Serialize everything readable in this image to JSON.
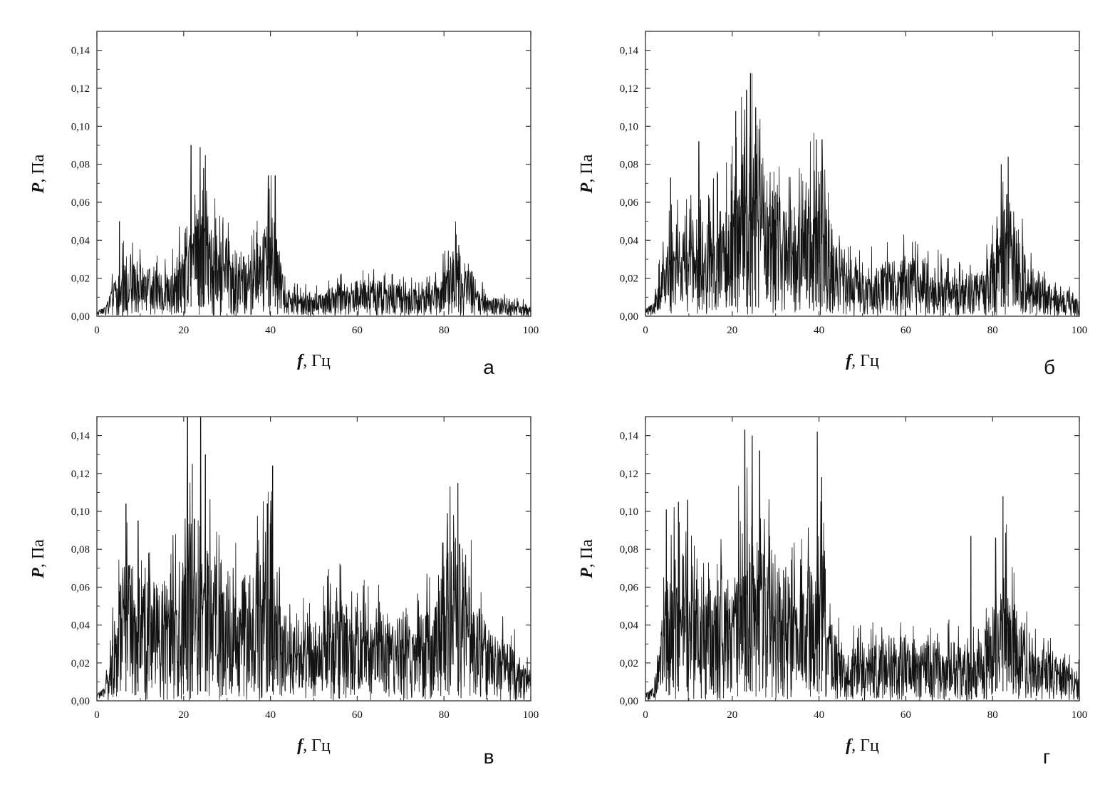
{
  "chart_data": [
    {
      "type": "line",
      "panel_label": "а",
      "xlabel": {
        "symbol": "f",
        "unit": ", Гц"
      },
      "ylabel": {
        "symbol": "P",
        "unit": ", Па"
      },
      "xlim": [
        0,
        100
      ],
      "ylim": [
        0,
        0.15
      ],
      "xticks": [
        "0",
        "20",
        "40",
        "60",
        "80",
        "100"
      ],
      "yticks": [
        "0,00",
        "0,02",
        "0,04",
        "0,06",
        "0,08",
        "0,10",
        "0,12",
        "0,14"
      ],
      "grid": false,
      "colors": {
        "trace": "#111111",
        "trace_light": "#8a8a8a"
      },
      "envelope": {
        "x": [
          0,
          2,
          4,
          6,
          8,
          10,
          12,
          15,
          18,
          20,
          21,
          22,
          23,
          24,
          25,
          26,
          28,
          30,
          33,
          36,
          38,
          40,
          41,
          42,
          43,
          45,
          50,
          55,
          60,
          65,
          70,
          75,
          78,
          80,
          82,
          83,
          84,
          86,
          88,
          90,
          95,
          100
        ],
        "y": [
          0.002,
          0.004,
          0.012,
          0.018,
          0.02,
          0.018,
          0.016,
          0.016,
          0.018,
          0.025,
          0.035,
          0.04,
          0.045,
          0.045,
          0.04,
          0.032,
          0.028,
          0.026,
          0.022,
          0.022,
          0.028,
          0.035,
          0.035,
          0.025,
          0.012,
          0.008,
          0.008,
          0.01,
          0.012,
          0.012,
          0.01,
          0.009,
          0.012,
          0.016,
          0.022,
          0.024,
          0.022,
          0.016,
          0.01,
          0.007,
          0.005,
          0.004
        ]
      },
      "peaks": [
        {
          "x": 5.2,
          "y": 0.05
        },
        {
          "x": 21.7,
          "y": 0.09
        },
        {
          "x": 23.8,
          "y": 0.089
        },
        {
          "x": 24.6,
          "y": 0.078
        },
        {
          "x": 39.5,
          "y": 0.074
        },
        {
          "x": 41.1,
          "y": 0.074
        },
        {
          "x": 82.8,
          "y": 0.043
        }
      ]
    },
    {
      "type": "line",
      "panel_label": "б",
      "xlabel": {
        "symbol": "f",
        "unit": ", Гц"
      },
      "ylabel": {
        "symbol": "P",
        "unit": ", Па"
      },
      "xlim": [
        0,
        100
      ],
      "ylim": [
        0,
        0.15
      ],
      "xticks": [
        "0",
        "20",
        "40",
        "60",
        "80",
        "100"
      ],
      "yticks": [
        "0,00",
        "0,02",
        "0,04",
        "0,06",
        "0,08",
        "0,10",
        "0,12",
        "0,14"
      ],
      "grid": false,
      "colors": {
        "trace": "#111111",
        "trace_light": "#8a8a8a"
      },
      "envelope": {
        "x": [
          0,
          2,
          4,
          6,
          10,
          14,
          18,
          20,
          22,
          24,
          26,
          28,
          32,
          36,
          38,
          40,
          42,
          45,
          50,
          55,
          60,
          65,
          70,
          75,
          78,
          80,
          82,
          84,
          86,
          88,
          90,
          95,
          100
        ],
        "y": [
          0.003,
          0.006,
          0.02,
          0.028,
          0.03,
          0.032,
          0.038,
          0.046,
          0.055,
          0.062,
          0.055,
          0.045,
          0.038,
          0.038,
          0.045,
          0.048,
          0.035,
          0.02,
          0.016,
          0.018,
          0.02,
          0.018,
          0.014,
          0.013,
          0.016,
          0.025,
          0.035,
          0.038,
          0.03,
          0.018,
          0.012,
          0.009,
          0.007
        ]
      },
      "peaks": [
        {
          "x": 5.8,
          "y": 0.073
        },
        {
          "x": 12.3,
          "y": 0.092
        },
        {
          "x": 20.8,
          "y": 0.108
        },
        {
          "x": 23.3,
          "y": 0.119
        },
        {
          "x": 24.2,
          "y": 0.128
        },
        {
          "x": 25.4,
          "y": 0.11
        },
        {
          "x": 39.4,
          "y": 0.093
        },
        {
          "x": 40.7,
          "y": 0.093
        },
        {
          "x": 82.0,
          "y": 0.08
        },
        {
          "x": 83.6,
          "y": 0.084
        }
      ]
    },
    {
      "type": "line",
      "panel_label": "в",
      "xlabel": {
        "symbol": "f",
        "unit": ", Гц"
      },
      "ylabel": {
        "symbol": "P",
        "unit": ", Па"
      },
      "xlim": [
        0,
        100
      ],
      "ylim": [
        0,
        0.15
      ],
      "xticks": [
        "0",
        "20",
        "40",
        "60",
        "80",
        "100"
      ],
      "yticks": [
        "0,00",
        "0,02",
        "0,04",
        "0,06",
        "0,08",
        "0,10",
        "0,12",
        "0,14"
      ],
      "grid": false,
      "colors": {
        "trace": "#111111",
        "trace_light": "#8a8a8a"
      },
      "envelope": {
        "x": [
          0,
          2,
          4,
          6,
          8,
          12,
          16,
          20,
          21,
          22,
          23,
          24,
          26,
          30,
          35,
          38,
          40,
          42,
          45,
          50,
          55,
          60,
          65,
          70,
          75,
          78,
          80,
          82,
          83,
          84,
          86,
          90,
          95,
          100
        ],
        "y": [
          0.003,
          0.006,
          0.03,
          0.045,
          0.045,
          0.04,
          0.04,
          0.05,
          0.06,
          0.06,
          0.065,
          0.062,
          0.05,
          0.045,
          0.04,
          0.048,
          0.055,
          0.035,
          0.025,
          0.028,
          0.035,
          0.032,
          0.03,
          0.028,
          0.028,
          0.035,
          0.045,
          0.055,
          0.06,
          0.055,
          0.04,
          0.025,
          0.02,
          0.01
        ]
      },
      "peaks": [
        {
          "x": 6.7,
          "y": 0.104
        },
        {
          "x": 9.5,
          "y": 0.095
        },
        {
          "x": 20.9,
          "y": 0.15
        },
        {
          "x": 22.0,
          "y": 0.125
        },
        {
          "x": 23.9,
          "y": 0.15
        },
        {
          "x": 25.0,
          "y": 0.13
        },
        {
          "x": 39.3,
          "y": 0.104
        },
        {
          "x": 40.5,
          "y": 0.124
        },
        {
          "x": 80.8,
          "y": 0.099
        },
        {
          "x": 83.2,
          "y": 0.115
        }
      ]
    },
    {
      "type": "line",
      "panel_label": "г",
      "xlabel": {
        "symbol": "f",
        "unit": ", Гц"
      },
      "ylabel": {
        "symbol": "P",
        "unit": ", Па"
      },
      "xlim": [
        0,
        100
      ],
      "ylim": [
        0,
        0.15
      ],
      "xticks": [
        "0",
        "20",
        "40",
        "60",
        "80",
        "100"
      ],
      "yticks": [
        "0,00",
        "0,02",
        "0,04",
        "0,06",
        "0,08",
        "0,10",
        "0,12",
        "0,14"
      ],
      "grid": false,
      "colors": {
        "trace": "#111111",
        "trace_light": "#8a8a8a"
      },
      "envelope": {
        "x": [
          0,
          2,
          4,
          6,
          8,
          12,
          16,
          20,
          22,
          24,
          26,
          30,
          35,
          38,
          40,
          41,
          42,
          45,
          50,
          55,
          60,
          65,
          70,
          75,
          78,
          80,
          82,
          84,
          86,
          90,
          95,
          100
        ],
        "y": [
          0.003,
          0.006,
          0.035,
          0.048,
          0.05,
          0.045,
          0.04,
          0.045,
          0.055,
          0.06,
          0.055,
          0.045,
          0.04,
          0.045,
          0.05,
          0.048,
          0.03,
          0.02,
          0.018,
          0.02,
          0.022,
          0.02,
          0.02,
          0.018,
          0.022,
          0.035,
          0.045,
          0.042,
          0.03,
          0.018,
          0.015,
          0.01
        ]
      },
      "peaks": [
        {
          "x": 4.8,
          "y": 0.101
        },
        {
          "x": 7.6,
          "y": 0.105
        },
        {
          "x": 9.7,
          "y": 0.106
        },
        {
          "x": 22.9,
          "y": 0.143
        },
        {
          "x": 24.6,
          "y": 0.14
        },
        {
          "x": 26.3,
          "y": 0.132
        },
        {
          "x": 39.6,
          "y": 0.142
        },
        {
          "x": 40.6,
          "y": 0.118
        },
        {
          "x": 75.0,
          "y": 0.087
        },
        {
          "x": 82.4,
          "y": 0.108
        },
        {
          "x": 80.7,
          "y": 0.086
        }
      ]
    }
  ]
}
